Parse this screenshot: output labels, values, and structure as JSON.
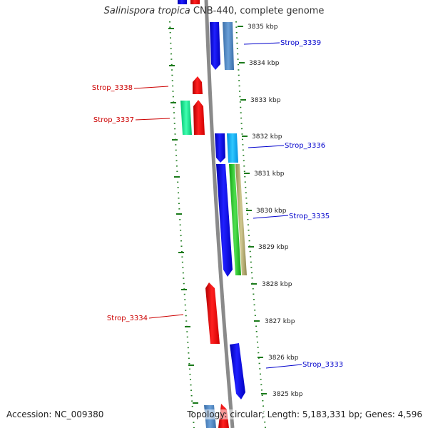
{
  "header": {
    "organism": "Salinispora tropica",
    "title_suffix": "CNB-440, complete genome"
  },
  "footer": {
    "accession": "Accession: NC_009380",
    "summary": "Topology: circular; Length: 5,183,331 bp; Genes: 4,596"
  },
  "scale": {
    "ticks": [
      "3835 kbp",
      "3834 kbp",
      "3833 kbp",
      "3832 kbp",
      "3831 kbp",
      "3830 kbp",
      "3829 kbp",
      "3828 kbp",
      "3827 kbp",
      "3826 kbp",
      "3825 kbp"
    ]
  },
  "genes": {
    "labeled": [
      {
        "name": "Strop_3339",
        "strand": "reverse",
        "color": "#0000cc"
      },
      {
        "name": "Strop_3338",
        "strand": "forward",
        "color": "#cc0000"
      },
      {
        "name": "Strop_3337",
        "strand": "forward",
        "color": "#cc0000"
      },
      {
        "name": "Strop_3336",
        "strand": "reverse",
        "color": "#0000cc"
      },
      {
        "name": "Strop_3335",
        "strand": "reverse",
        "color": "#0000cc"
      },
      {
        "name": "Strop_3334",
        "strand": "forward",
        "color": "#cc0000"
      },
      {
        "name": "Strop_3333",
        "strand": "reverse",
        "color": "#0000cc"
      }
    ]
  },
  "colors": {
    "forward_gene": "#ff0000",
    "reverse_gene": "#0000ee",
    "steelblue_gene": "#4a86c0",
    "cyan_gene": "#00b0ff",
    "teal_gene": "#10e890",
    "green_gene": "#22cc22",
    "olive_gene": "#b8b070",
    "backbone": "#8a8a8a",
    "tick": "#1a7a1a",
    "forward_label": "#cc0000",
    "reverse_label": "#0000cc"
  }
}
